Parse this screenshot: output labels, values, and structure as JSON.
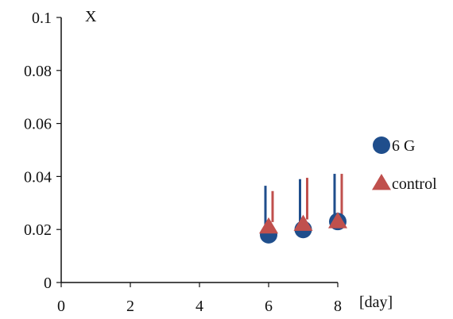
{
  "chart_data": {
    "type": "scatter",
    "ylabel": "X",
    "xlabel": "[day]",
    "xlim": [
      0,
      8
    ],
    "ylim": [
      0,
      0.1
    ],
    "xticks": [
      {
        "value": 0,
        "label": "0"
      },
      {
        "value": 2,
        "label": "2"
      },
      {
        "value": 4,
        "label": "4"
      },
      {
        "value": 6,
        "label": "6"
      },
      {
        "value": 8,
        "label": "8"
      }
    ],
    "yticks": [
      {
        "value": 0,
        "label": "0"
      },
      {
        "value": 0.02,
        "label": "0.02"
      },
      {
        "value": 0.04,
        "label": "0.04"
      },
      {
        "value": 0.06,
        "label": "0.06"
      },
      {
        "value": 0.08,
        "label": "0.08"
      },
      {
        "value": 0.1,
        "label": "0.1"
      }
    ],
    "grid": false,
    "legend_position": "right",
    "series": [
      {
        "name": "6 G",
        "marker": "circle",
        "color": "#1f4e8c",
        "points": [
          {
            "x": 6,
            "y": 0.018,
            "err": 0.0185
          },
          {
            "x": 7,
            "y": 0.02,
            "err": 0.019
          },
          {
            "x": 8,
            "y": 0.023,
            "err": 0.018
          }
        ]
      },
      {
        "name": "control",
        "marker": "triangle",
        "color": "#c0504d",
        "points": [
          {
            "x": 6,
            "y": 0.021,
            "err": 0.0135
          },
          {
            "x": 7,
            "y": 0.022,
            "err": 0.0175
          },
          {
            "x": 8,
            "y": 0.023,
            "err": 0.018
          }
        ]
      }
    ]
  }
}
